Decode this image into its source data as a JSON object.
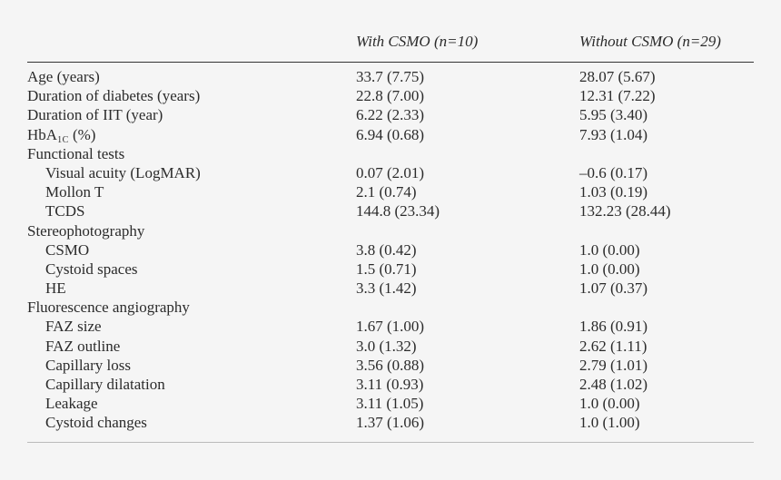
{
  "table": {
    "col_headers": [
      "With CSMO (n=10)",
      "Without CSMO (n=29)"
    ],
    "rows": [
      {
        "label": "Age (years)",
        "v1": "33.7 (7.75)",
        "v2": "28.07 (5.67)"
      },
      {
        "label": "Duration of diabetes (years)",
        "v1": "22.8 (7.00)",
        "v2": "12.31 (7.22)"
      },
      {
        "label": "Duration of IIT (year)",
        "v1": "6.22 (2.33)",
        "v2": "5.95 (3.40)"
      },
      {
        "label_main": "HbA",
        "label_sub": "1C",
        "label_tail": " (%)",
        "v1": "6.94 (0.68)",
        "v2": "7.93 (1.04)"
      },
      {
        "label": "Functional tests",
        "v1": "",
        "v2": ""
      },
      {
        "label": "Visual acuity (LogMAR)",
        "v1": "0.07 (2.01)",
        "v2": "–0.6 (0.17)"
      },
      {
        "label": "Mollon T",
        "v1": "2.1 (0.74)",
        "v2": "1.03 (0.19)"
      },
      {
        "label": "TCDS",
        "v1": "144.8 (23.34)",
        "v2": "132.23 (28.44)"
      },
      {
        "label": "Stereophotography",
        "v1": "",
        "v2": ""
      },
      {
        "label": "CSMO",
        "v1": "3.8 (0.42)",
        "v2": "1.0 (0.00)"
      },
      {
        "label": "Cystoid spaces",
        "v1": "1.5 (0.71)",
        "v2": "1.0 (0.00)"
      },
      {
        "label": "HE",
        "v1": "3.3 (1.42)",
        "v2": "1.07 (0.37)"
      },
      {
        "label": "Fluorescence angiography",
        "v1": "",
        "v2": ""
      },
      {
        "label": "FAZ size",
        "v1": "1.67 (1.00)",
        "v2": "1.86 (0.91)"
      },
      {
        "label": "FAZ outline",
        "v1": "3.0 (1.32)",
        "v2": "2.62 (1.11)"
      },
      {
        "label": "Capillary loss",
        "v1": "3.56 (0.88)",
        "v2": "2.79 (1.01)"
      },
      {
        "label": "Capillary dilatation",
        "v1": "3.11 (0.93)",
        "v2": "2.48 (1.02)"
      },
      {
        "label": "Leakage",
        "v1": "3.11 (1.05)",
        "v2": "1.0 (0.00)"
      },
      {
        "label": "Cystoid changes",
        "v1": "1.37 (1.06)",
        "v2": "1.0 (1.00)"
      }
    ]
  }
}
